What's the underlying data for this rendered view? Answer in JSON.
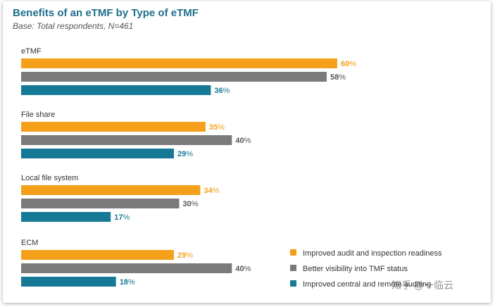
{
  "header": {
    "title": "Benefits of an eTMF by Type of eTMF",
    "subtitle": "Base: Total respondents, N=461"
  },
  "colors": {
    "audit": "#f5a01a",
    "visibility": "#7a7a7a",
    "central": "#167a96"
  },
  "chart_data": {
    "type": "bar",
    "orientation": "horizontal",
    "title": "Benefits of an eTMF by Type of eTMF",
    "subtitle": "Base: Total respondents, N=461",
    "categories": [
      "eTMF",
      "File share",
      "Local file system",
      "ECM"
    ],
    "unit": "%",
    "series": [
      {
        "name": "Improved audit and inspection readiness",
        "color": "#f5a01a",
        "values": [
          60,
          35,
          34,
          29
        ]
      },
      {
        "name": "Better visibility into TMF status",
        "color": "#7a7a7a",
        "values": [
          58,
          40,
          30,
          40
        ]
      },
      {
        "name": "Improved central and remote auditing",
        "color": "#167a96",
        "values": [
          36,
          29,
          17,
          18
        ]
      }
    ],
    "legend_position": "bottom-right",
    "grid": false
  },
  "watermark": "知乎 @一临云"
}
